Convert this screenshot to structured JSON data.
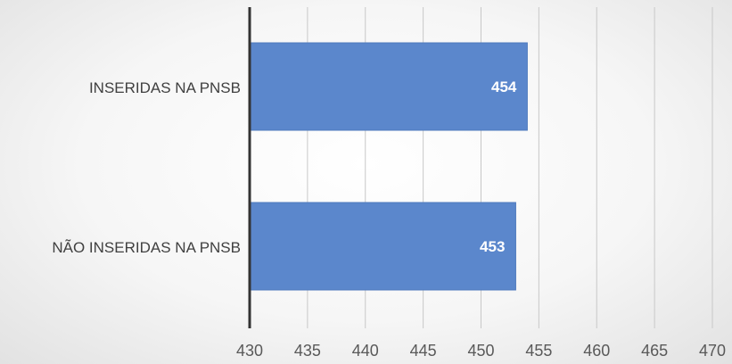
{
  "chart_data": {
    "type": "bar",
    "orientation": "horizontal",
    "title": "",
    "xlabel": "",
    "ylabel": "",
    "categories": [
      "INSERIDAS NA PNSB",
      "NÃO INSERIDAS NA PNSB"
    ],
    "values": [
      454,
      453
    ],
    "data_labels": [
      "454",
      "453"
    ],
    "xlim": [
      430,
      470
    ],
    "xticks": [
      430,
      435,
      440,
      445,
      450,
      455,
      460,
      465,
      470
    ],
    "xtick_labels": [
      "430",
      "435",
      "440",
      "445",
      "450",
      "455",
      "460",
      "465",
      "470"
    ],
    "grid": true,
    "legend": "none",
    "colors": {
      "bar": "#5b87cc",
      "bar_edge": "#4e79bd",
      "axis": "#333333",
      "grid": "#c8c8c8"
    }
  }
}
